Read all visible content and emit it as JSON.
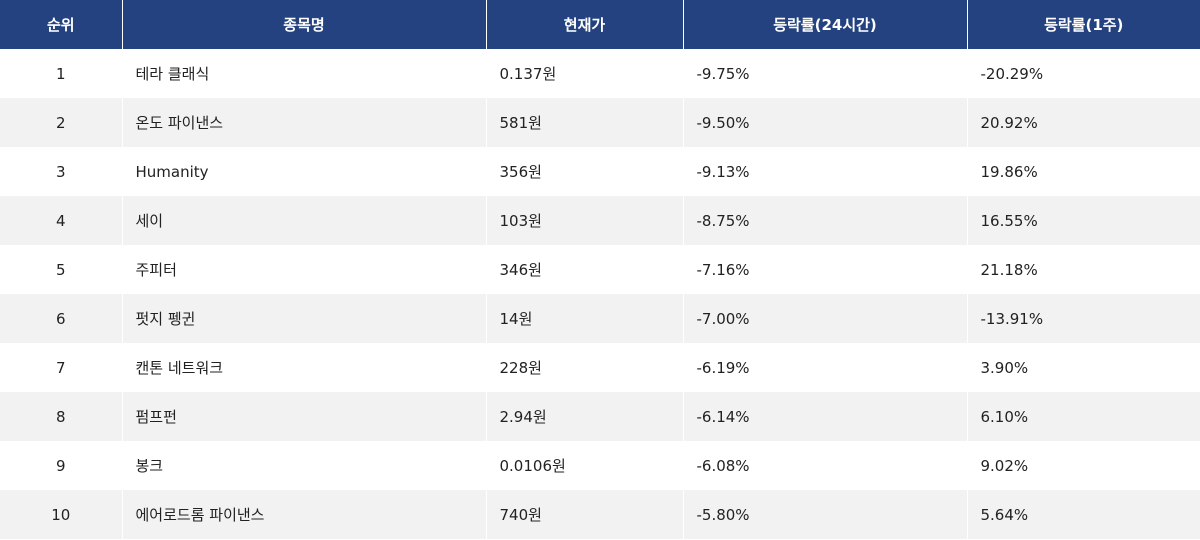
{
  "table": {
    "headers": [
      "순위",
      "종목명",
      "현재가",
      "등락률(24시간)",
      "등락률(1주)"
    ],
    "rows": [
      {
        "rank": "1",
        "name": "테라 클래식",
        "price": "0.137원",
        "change_24h": "-9.75%",
        "change_1w": "-20.29%"
      },
      {
        "rank": "2",
        "name": "온도 파이낸스",
        "price": "581원",
        "change_24h": "-9.50%",
        "change_1w": "20.92%"
      },
      {
        "rank": "3",
        "name": "Humanity",
        "price": "356원",
        "change_24h": "-9.13%",
        "change_1w": "19.86%"
      },
      {
        "rank": "4",
        "name": "세이",
        "price": "103원",
        "change_24h": "-8.75%",
        "change_1w": "16.55%"
      },
      {
        "rank": "5",
        "name": "주피터",
        "price": "346원",
        "change_24h": "-7.16%",
        "change_1w": "21.18%"
      },
      {
        "rank": "6",
        "name": "펏지 펭귄",
        "price": "14원",
        "change_24h": "-7.00%",
        "change_1w": "-13.91%"
      },
      {
        "rank": "7",
        "name": "캔톤 네트워크",
        "price": "228원",
        "change_24h": "-6.19%",
        "change_1w": "3.90%"
      },
      {
        "rank": "8",
        "name": "펌프펀",
        "price": "2.94원",
        "change_24h": "-6.14%",
        "change_1w": "6.10%"
      },
      {
        "rank": "9",
        "name": "봉크",
        "price": "0.0106원",
        "change_24h": "-6.08%",
        "change_1w": "9.02%"
      },
      {
        "rank": "10",
        "name": "에어로드롬 파이낸스",
        "price": "740원",
        "change_24h": "-5.80%",
        "change_1w": "5.64%"
      }
    ]
  },
  "colors": {
    "header_bg": "#24427f",
    "header_text": "#ffffff",
    "stripe_bg": "#f2f2f2",
    "body_text": "#222222"
  }
}
